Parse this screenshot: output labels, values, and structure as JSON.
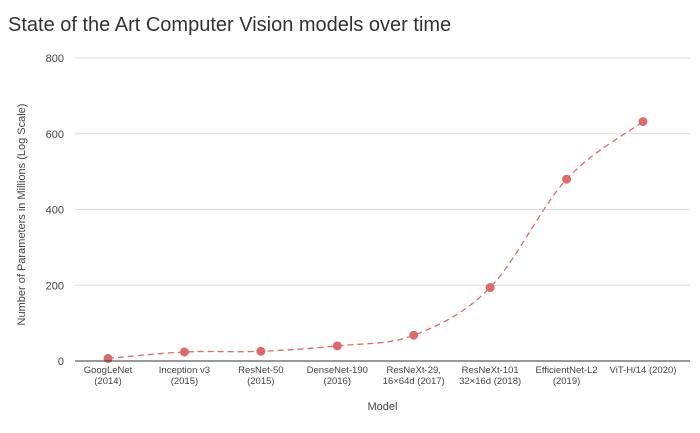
{
  "chart_data": {
    "type": "line",
    "title": "State of the Art Computer Vision models over time",
    "xlabel": "Model",
    "ylabel": "Number of Parameters in Millions (Log Scale)",
    "ylim": [
      0,
      800
    ],
    "yticks": [
      "0",
      "200",
      "400",
      "600",
      "800"
    ],
    "categories": [
      [
        "GoogLeNet",
        "(2014)"
      ],
      [
        "Inception v3",
        "(2015)"
      ],
      [
        "ResNet-50",
        "(2015)"
      ],
      [
        "DenseNet-190",
        "(2016)"
      ],
      [
        "ResNeXt-29,",
        "16×64d (2017)"
      ],
      [
        "ResNeXt-101",
        "32×16d (2018)"
      ],
      [
        "EfficientNet-L2",
        "(2019)"
      ],
      [
        "ViT-H/14 (2020)"
      ]
    ],
    "series": [
      {
        "values": [
          6.8,
          23.8,
          25.6,
          40,
          68,
          194,
          480,
          632
        ]
      }
    ],
    "grid": true,
    "legend": "none",
    "colors": {
      "series": "#db6b6b",
      "grid": "#dddddd",
      "axis": "#333333"
    }
  }
}
